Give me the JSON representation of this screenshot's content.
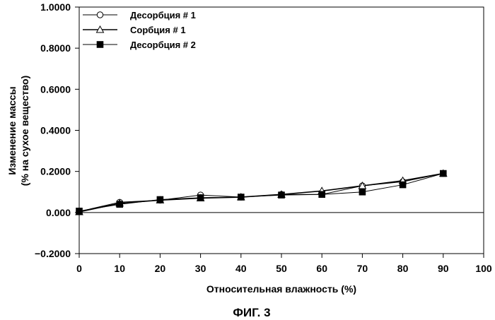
{
  "chart_data": {
    "type": "line",
    "title": "",
    "xlabel": "Относительная влажность (%)",
    "ylabel_line1": "Изменение массы",
    "ylabel_line2": "(% на сухое вещество)",
    "xlim": [
      0,
      100
    ],
    "ylim": [
      -0.2,
      1.0
    ],
    "x_ticks": [
      0,
      10,
      20,
      30,
      40,
      50,
      60,
      70,
      80,
      90,
      100
    ],
    "x_tick_labels": [
      "0",
      "10",
      "20",
      "30",
      "40",
      "50",
      "60",
      "70",
      "80",
      "90",
      "100"
    ],
    "y_ticks": [
      -0.2,
      0.0,
      0.2,
      0.4,
      0.6,
      0.8,
      1.0
    ],
    "y_tick_labels": [
      "−0.2000",
      "0.000",
      "0.2000",
      "0.4000",
      "0.6000",
      "0.8000",
      "1.0000"
    ],
    "zero_line": true,
    "grid": false,
    "legend_position": "top-left",
    "x": [
      0,
      10,
      20,
      30,
      40,
      50,
      60,
      70,
      80,
      90
    ],
    "series": [
      {
        "name": "Десорбция # 1",
        "marker": "circle-open",
        "values": [
          0.005,
          0.05,
          0.06,
          0.085,
          0.075,
          0.088,
          0.088,
          0.13,
          0.15,
          0.19
        ]
      },
      {
        "name": "Сорбция # 1",
        "marker": "triangle-open",
        "values": [
          0.003,
          0.045,
          0.06,
          0.07,
          0.075,
          0.088,
          0.105,
          0.13,
          0.155,
          0.19
        ]
      },
      {
        "name": "Десорбция # 2",
        "marker": "square-filled",
        "values": [
          0.007,
          0.04,
          0.063,
          0.072,
          0.075,
          0.085,
          0.088,
          0.1,
          0.135,
          0.19
        ]
      }
    ]
  },
  "caption": "ФИГ. 3"
}
